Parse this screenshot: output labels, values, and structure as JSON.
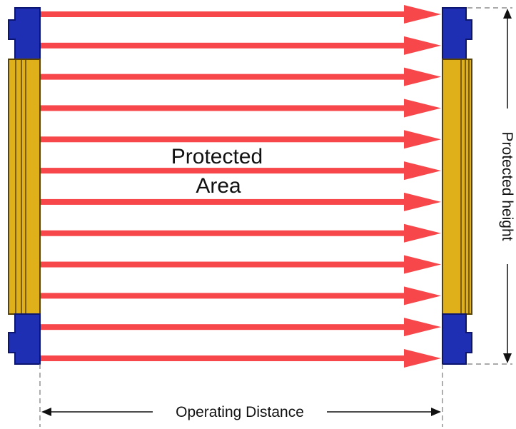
{
  "labels": {
    "area_line1": "Protected",
    "area_line2": "Area",
    "operating_distance": "Operating Distance",
    "protected_height": "Protected height"
  },
  "beams": {
    "count": 12
  },
  "colors": {
    "beam": "#f7474a",
    "housing_blue": "#1f2fb4",
    "housing_dark": "#0c1570",
    "strip_gold": "#e0b01a",
    "strip_edge": "#5a4300",
    "dimension": "#111111",
    "dash": "#777777"
  }
}
